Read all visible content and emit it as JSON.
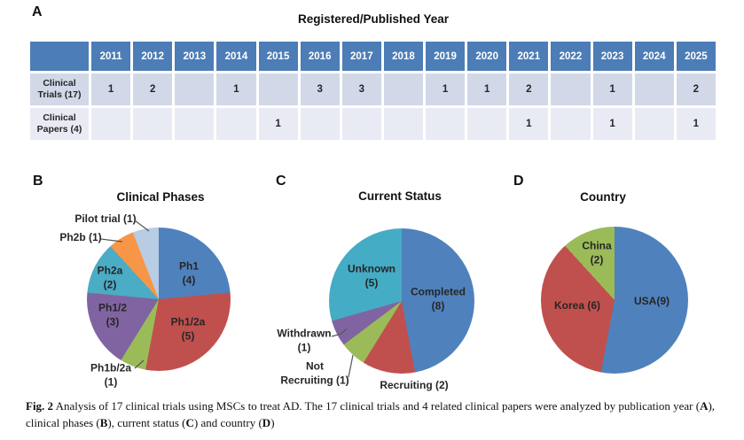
{
  "panels": {
    "a": "A",
    "b": "B",
    "c": "C",
    "d": "D"
  },
  "chart_data": [
    {
      "type": "table",
      "title": "Registered/Published Year",
      "corner": "",
      "years": [
        "2011",
        "2012",
        "2013",
        "2014",
        "2015",
        "2016",
        "2017",
        "2018",
        "2019",
        "2020",
        "2021",
        "2022",
        "2023",
        "2024",
        "2025"
      ],
      "rows": [
        {
          "label": "Clinical Trials (17)",
          "values": [
            "1",
            "2",
            "",
            "1",
            "",
            "3",
            "3",
            "",
            "1",
            "1",
            "2",
            "",
            "1",
            "",
            "2"
          ]
        },
        {
          "label": "Clinical Papers (4)",
          "values": [
            "",
            "",
            "",
            "",
            "1",
            "",
            "",
            "",
            "",
            "",
            "1",
            "",
            "1",
            "",
            "1"
          ]
        }
      ]
    },
    {
      "type": "pie",
      "title": "Clinical Phases",
      "total": 17,
      "categories": [
        "Ph1",
        "Ph1/2a",
        "Ph1b/2a",
        "Ph1/2",
        "Ph2a",
        "Ph2b",
        "Pilot trial"
      ],
      "values": [
        4,
        5,
        1,
        3,
        2,
        1,
        1
      ],
      "colors": [
        "#4F81BD",
        "#C0504D",
        "#9BBB59",
        "#8064A2",
        "#4BACC6",
        "#F79646",
        "#B8CCE4"
      ],
      "start_angle_deg": 0,
      "direction": "clockwise",
      "legend_position": "none",
      "point_labels": {
        "ph1": "Ph1\n(4)",
        "ph1_2a": "Ph1/2a\n(5)",
        "ph1b_2a": "Ph1b/2a\n(1)",
        "ph1_2": "Ph1/2\n(3)",
        "ph2a": "Ph2a\n(2)",
        "ph2b": "Ph2b (1)",
        "pilot": "Pilot trial (1)"
      }
    },
    {
      "type": "pie",
      "title": "Current Status",
      "total": 17,
      "categories": [
        "Completed",
        "Recruiting",
        "Not Recruiting",
        "Withdrawn",
        "Unknown"
      ],
      "values": [
        8,
        2,
        1,
        1,
        5
      ],
      "colors": [
        "#4F81BD",
        "#C0504D",
        "#9BBB59",
        "#8064A2",
        "#45ACC5"
      ],
      "start_angle_deg": 0,
      "direction": "clockwise",
      "legend_position": "none",
      "point_labels": {
        "completed": "Completed\n(8)",
        "recruiting": "Recruiting (2)",
        "not_recruiting": "Not\nRecruiting (1)",
        "withdrawn": "Withdrawn\n(1)",
        "unknown": "Unknown\n(5)"
      }
    },
    {
      "type": "pie",
      "title": "Country",
      "total": 17,
      "categories": [
        "USA",
        "Korea",
        "China"
      ],
      "values": [
        9,
        6,
        2
      ],
      "colors": [
        "#4F81BD",
        "#C0504D",
        "#9BBB59"
      ],
      "start_angle_deg": 0,
      "direction": "clockwise",
      "legend_position": "none",
      "point_labels": {
        "usa": "USA(9)",
        "korea": "Korea (6)",
        "china": "China\n(2)"
      }
    }
  ],
  "caption": {
    "seg1": "Fig. 2",
    "seg2": "  Analysis of 17 clinical trials using MSCs to treat AD. The 17 clinical trials and 4 related clinical papers were analyzed by publication year (",
    "seg3": "A",
    "seg4": "), clinical phases (",
    "seg5": "B",
    "seg6": "), current status (",
    "seg7": "C",
    "seg8": ") and country (",
    "seg9": "D",
    "seg10": ")"
  },
  "colors": {
    "table_header": "#4C7DB6",
    "table_row1": "#D2D8E7",
    "table_row2": "#E9EBF4",
    "accent_blue": "#4F81BD",
    "accent_red": "#C0504D",
    "accent_green": "#9BBB59",
    "accent_purple": "#8064A2",
    "accent_teal": "#4BACC6",
    "accent_orange": "#F79646",
    "accent_lavender": "#B8CCE4"
  }
}
